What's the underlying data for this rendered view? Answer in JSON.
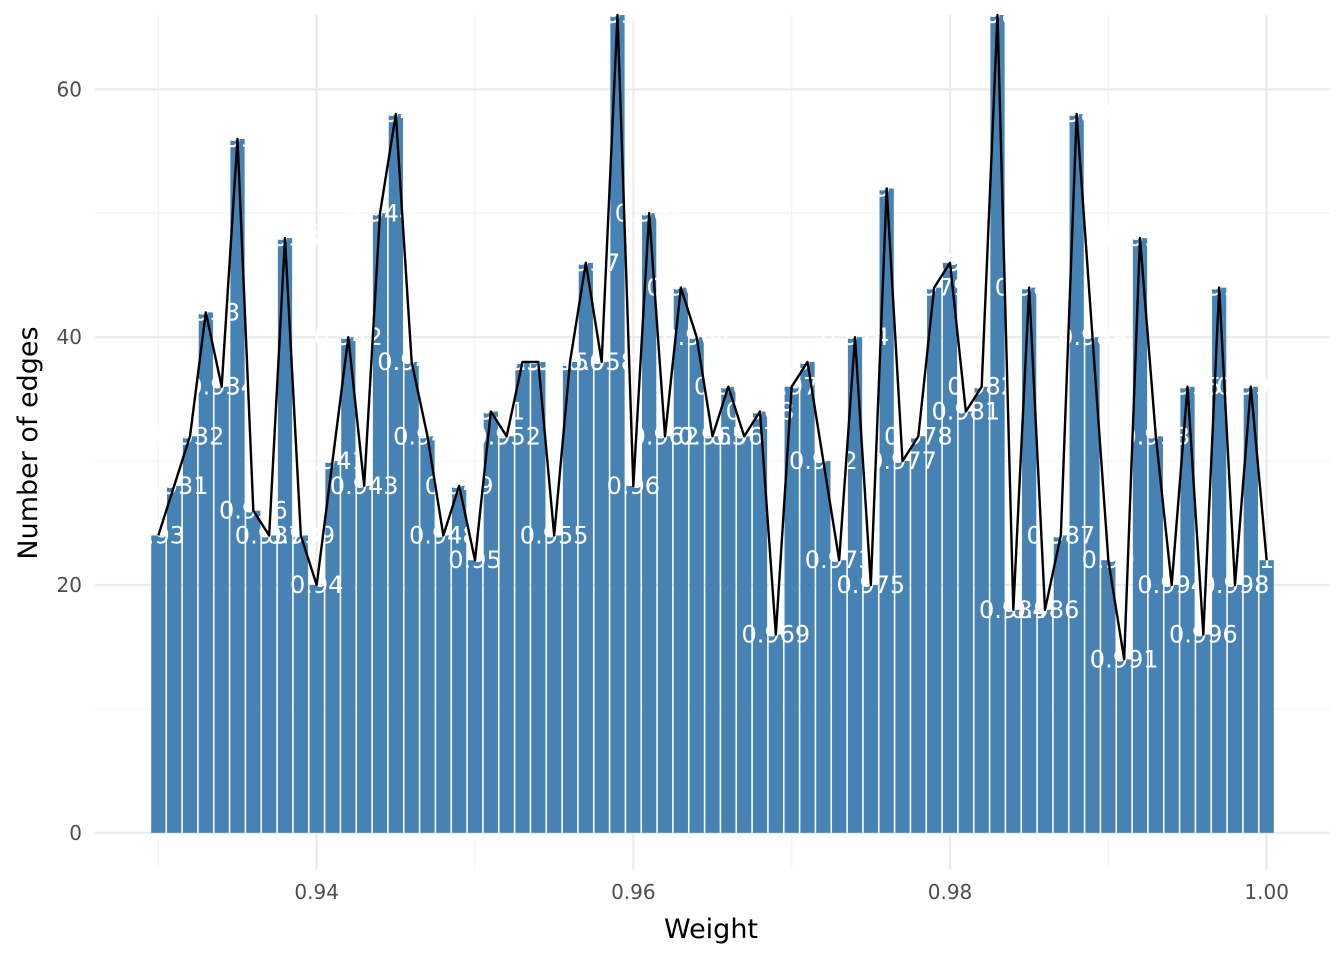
{
  "chart_data": {
    "type": "bar",
    "title": "",
    "xlabel": "Weight",
    "ylabel": "Number of edges",
    "xlim": [
      0.926,
      1.004
    ],
    "ylim": [
      -3,
      66
    ],
    "x_ticks": [
      "0.94",
      "0.96",
      "0.98",
      "1.00"
    ],
    "x_tick_values": [
      0.94,
      0.96,
      0.98,
      1.0
    ],
    "y_ticks": [
      "0",
      "20",
      "40",
      "60"
    ],
    "y_tick_values": [
      0,
      20,
      40,
      60
    ],
    "grid": true,
    "bar_color": "#4682b4",
    "line_color": "#000000",
    "overlay": "line through bar tops",
    "x": [
      0.93,
      0.931,
      0.932,
      0.933,
      0.934,
      0.935,
      0.936,
      0.937,
      0.938,
      0.939,
      0.94,
      0.941,
      0.942,
      0.943,
      0.944,
      0.945,
      0.946,
      0.947,
      0.948,
      0.949,
      0.95,
      0.951,
      0.952,
      0.953,
      0.954,
      0.955,
      0.956,
      0.957,
      0.958,
      0.959,
      0.96,
      0.961,
      0.962,
      0.963,
      0.964,
      0.965,
      0.966,
      0.967,
      0.968,
      0.969,
      0.97,
      0.971,
      0.972,
      0.973,
      0.974,
      0.975,
      0.976,
      0.977,
      0.978,
      0.979,
      0.98,
      0.981,
      0.982,
      0.983,
      0.984,
      0.985,
      0.986,
      0.987,
      0.988,
      0.989,
      0.99,
      0.991,
      0.992,
      0.993,
      0.994,
      0.995,
      0.996,
      0.997,
      0.998,
      0.999,
      1.0
    ],
    "values": [
      24,
      28,
      32,
      42,
      36,
      56,
      26,
      24,
      48,
      24,
      20,
      30,
      40,
      28,
      50,
      58,
      38,
      32,
      24,
      28,
      22,
      34,
      32,
      38,
      38,
      24,
      38,
      46,
      38,
      66,
      28,
      50,
      32,
      44,
      40,
      32,
      36,
      32,
      34,
      16,
      36,
      38,
      30,
      22,
      40,
      20,
      52,
      30,
      32,
      44,
      46,
      34,
      36,
      66,
      18,
      44,
      18,
      24,
      58,
      40,
      22,
      14,
      48,
      32,
      20,
      36,
      16,
      44,
      20,
      36,
      22
    ],
    "labels": [
      "0.93",
      "0.931",
      "0.932",
      "0.933",
      "0.934",
      "0.935",
      "0.936",
      "0.937",
      "0.938",
      "0.939",
      "0.94",
      "0.941",
      "0.942",
      "0.943",
      "0.944",
      "0.945",
      "0.946",
      "0.947",
      "0.948",
      "0.949",
      "0.95",
      "0.951",
      "0.952",
      "0.953",
      "0.954",
      "0.955",
      "0.956",
      "0.957",
      "0.958",
      "0.959",
      "0.96",
      "0.961",
      "0.962",
      "0.963",
      "0.964",
      "0.965",
      "0.966",
      "0.967",
      "0.968",
      "0.969",
      "0.97",
      "0.971",
      "0.972",
      "0.973",
      "0.974",
      "0.975",
      "0.976",
      "0.977",
      "0.978",
      "0.979",
      "0.98",
      "0.981",
      "0.982",
      "0.983",
      "0.984",
      "0.985",
      "0.986",
      "0.987",
      "0.988",
      "0.989",
      "0.99",
      "0.991",
      "0.992",
      "0.993",
      "0.994",
      "0.995",
      "0.996",
      "0.997",
      "0.998",
      "0.999",
      "1"
    ]
  }
}
